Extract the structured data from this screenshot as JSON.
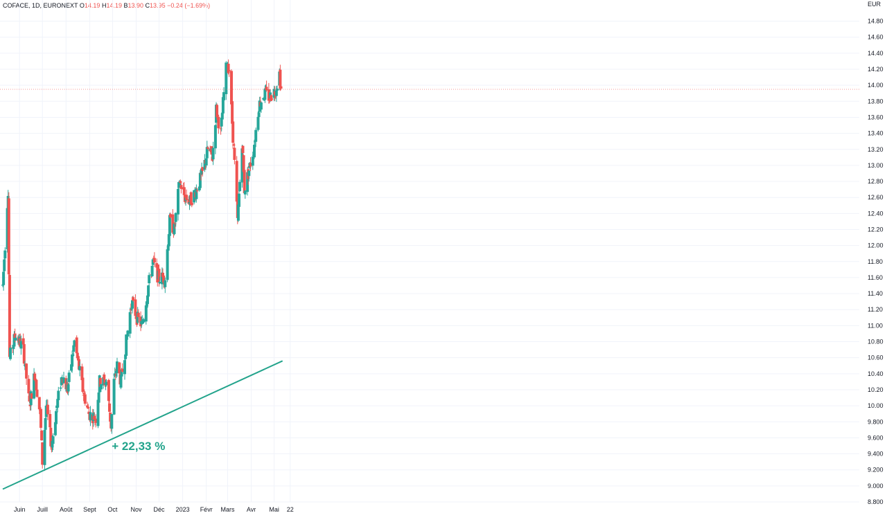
{
  "header": {
    "symbol": "COFACE, 1D, EURONEXT",
    "open_label": "O",
    "open": "14.19",
    "high_label": "H",
    "high": "14.19",
    "low_label": "B",
    "low": "13.90",
    "close_label": "C",
    "close": "13.95",
    "change": "−0.24 (−1.69%)"
  },
  "colors": {
    "up": "#26a69a",
    "down": "#ef5350",
    "trendline": "#22a38b",
    "grid": "#f0f3fa",
    "last_price_line": "#ef5350"
  },
  "annotation": "+ 22,33 %",
  "chart_data": {
    "type": "candlestick",
    "currency": "EUR",
    "ylim": [
      8.8,
      14.9
    ],
    "y_ticks": [
      "8.800",
      "9.000",
      "9.200",
      "9.400",
      "9.600",
      "9.800",
      "10.00",
      "10.20",
      "10.40",
      "10.60",
      "10.80",
      "11.00",
      "11.20",
      "11.40",
      "11.60",
      "11.80",
      "12.00",
      "12.20",
      "12.40",
      "12.60",
      "12.80",
      "13.00",
      "13.20",
      "13.40",
      "13.60",
      "13.80",
      "14.00",
      "14.20",
      "14.40",
      "14.60",
      "14.80"
    ],
    "x_labels": [
      "Juin",
      "Juill",
      "Août",
      "Sept",
      "Oct",
      "Nov",
      "Déc",
      "2023",
      "Févr",
      "Mars",
      "Avr",
      "Mai",
      "22"
    ],
    "last_price": 13.95,
    "trendline": {
      "start": {
        "date": "2022-05-10",
        "price": 8.96
      },
      "end": {
        "date": "2023-05-12",
        "price": 10.56
      }
    },
    "anchor_points": [
      [
        "2022-05-10",
        11.5
      ],
      [
        "2022-05-17",
        12.7
      ],
      [
        "2022-05-19",
        10.6
      ],
      [
        "2022-05-27",
        10.9
      ],
      [
        "2022-06-06",
        10.7
      ],
      [
        "2022-06-14",
        10.0
      ],
      [
        "2022-06-21",
        10.4
      ],
      [
        "2022-06-28",
        9.9
      ],
      [
        "2022-07-01",
        9.3
      ],
      [
        "2022-07-06",
        10.0
      ],
      [
        "2022-07-13",
        9.5
      ],
      [
        "2022-07-20",
        10.0
      ],
      [
        "2022-07-27",
        10.4
      ],
      [
        "2022-08-03",
        10.2
      ],
      [
        "2022-08-12",
        10.8
      ],
      [
        "2022-08-23",
        10.2
      ],
      [
        "2022-08-31",
        9.9
      ],
      [
        "2022-09-09",
        9.85
      ],
      [
        "2022-09-14",
        10.3
      ],
      [
        "2022-09-23",
        10.3
      ],
      [
        "2022-09-29",
        9.75
      ],
      [
        "2022-10-03",
        10.3
      ],
      [
        "2022-10-07",
        10.5
      ],
      [
        "2022-10-12",
        10.3
      ],
      [
        "2022-10-19",
        10.8
      ],
      [
        "2022-10-26",
        11.3
      ],
      [
        "2022-11-02",
        11.1
      ],
      [
        "2022-11-09",
        11.0
      ],
      [
        "2022-11-17",
        11.5
      ],
      [
        "2022-11-23",
        11.8
      ],
      [
        "2022-11-30",
        11.6
      ],
      [
        "2022-12-09",
        11.6
      ],
      [
        "2022-12-15",
        12.3
      ],
      [
        "2022-12-21",
        12.2
      ],
      [
        "2022-12-28",
        12.8
      ],
      [
        "2023-01-04",
        12.6
      ],
      [
        "2023-01-11",
        12.55
      ],
      [
        "2023-01-19",
        12.7
      ],
      [
        "2023-01-27",
        12.9
      ],
      [
        "2023-02-03",
        13.2
      ],
      [
        "2023-02-09",
        13.1
      ],
      [
        "2023-02-14",
        13.7
      ],
      [
        "2023-02-20",
        13.4
      ],
      [
        "2023-02-24",
        13.9
      ],
      [
        "2023-02-28",
        14.3
      ],
      [
        "2023-03-03",
        14.2
      ],
      [
        "2023-03-09",
        13.2
      ],
      [
        "2023-03-14",
        12.3
      ],
      [
        "2023-03-17",
        12.8
      ],
      [
        "2023-03-20",
        13.3
      ],
      [
        "2023-03-23",
        12.7
      ],
      [
        "2023-03-28",
        12.9
      ],
      [
        "2023-04-04",
        13.2
      ],
      [
        "2023-04-11",
        13.75
      ],
      [
        "2023-04-18",
        13.9
      ],
      [
        "2023-04-25",
        13.85
      ],
      [
        "2023-05-03",
        13.95
      ],
      [
        "2023-05-08",
        14.15
      ],
      [
        "2023-05-10",
        13.95
      ]
    ]
  }
}
